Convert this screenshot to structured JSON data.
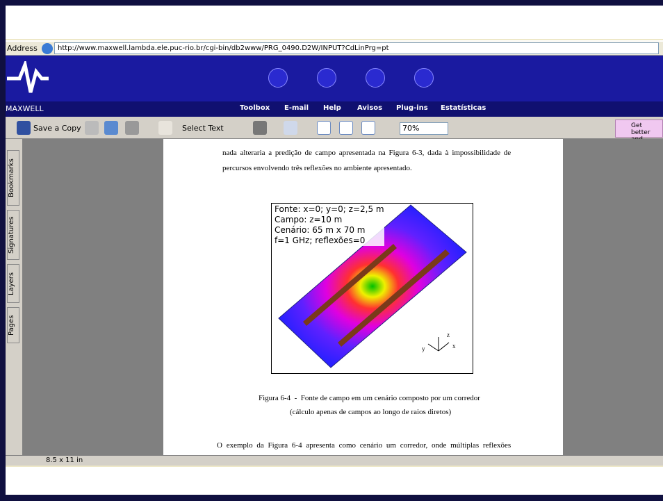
{
  "browser": {
    "address_label": "Address",
    "url": "http://www.maxwell.lambda.ele.puc-rio.br/cgi-bin/db2www/PRG_0490.D2W/INPUT?CdLinPrg=pt"
  },
  "site": {
    "brand": "MAXWELL",
    "nav": [
      "Toolbox",
      "E-mail",
      "Help",
      "Avisos",
      "Plug-ins",
      "Estatísticas"
    ]
  },
  "toolbar": {
    "save": "Save a Copy",
    "select": "Select Text",
    "zoom": "70%",
    "promo": [
      "Get better",
      "and faster"
    ]
  },
  "side_tabs": [
    "Bookmarks",
    "Signatures",
    "Layers",
    "Pages"
  ],
  "document": {
    "intro": [
      "nada alteraria a predição de campo apresentada na Figura 6-3, dada à impossibilidade de",
      "percursos envolvendo três reflexões no ambiente apresentado."
    ],
    "figure_legend": [
      "Fonte: x=0; y=0; z=2,5 m",
      "Campo: z=10 m",
      "Cenário: 65 m x 70 m",
      "f=1 GHz; reflexões=0"
    ],
    "axes": [
      "z",
      "y",
      "x"
    ],
    "caption": [
      "Figura 6-4  -  Fonte de campo em um cenário composto por um corredor",
      "(cálculo apenas de campos ao longo de raios diretos)"
    ],
    "next": "O exemplo da Figura 6-4 apresenta como cenário um corredor, onde múltiplas reflexões"
  },
  "status": {
    "page_size": "8.5 x 11 in"
  }
}
